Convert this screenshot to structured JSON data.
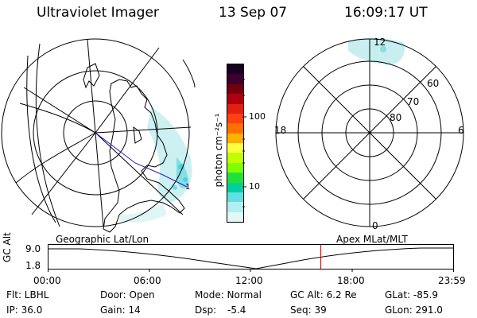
{
  "header": {
    "title": "Ultraviolet Imager",
    "date": "13 Sep 07",
    "time": "16:09:17 UT"
  },
  "colorbar": {
    "unit_label": "photon cm⁻²s⁻¹",
    "tick_100": "100",
    "tick_10": "10",
    "colors_top_to_bottom": [
      "#1a0020",
      "#3a0030",
      "#700010",
      "#b00010",
      "#e02010",
      "#ff4010",
      "#ff7000",
      "#ffb000",
      "#ffff40",
      "#c0ff00",
      "#80ff00",
      "#20e040",
      "#00d0a0",
      "#60e0e0",
      "#b0f0f0",
      "#e0f8f8"
    ]
  },
  "left_panel": {
    "label": "Geographic Lat/Lon"
  },
  "right_panel": {
    "label": "Apex MLat/MLT",
    "mlt_top": "12",
    "mlt_left": "18",
    "mlt_right": "6",
    "mlt_bottom": "0",
    "lat_60": "60",
    "lat_70": "70",
    "lat_80": "80"
  },
  "timeline": {
    "axis_label": "GC Alt",
    "y_top": "9.0",
    "y_bottom": "1.8",
    "x_ticks": [
      "00:00",
      "06:00",
      "12:00",
      "18:00",
      "23:59"
    ],
    "current_time_fraction": 0.673
  },
  "info": {
    "filter": "Flt: LBHL",
    "ip": "IP: 36.0",
    "door": "Door: Open",
    "gain": "Gain: 14",
    "mode": "Mode: Normal",
    "dsp_label": "Dsp:",
    "dsp_value": "-5.4",
    "gc_alt": "GC Alt: 6.2 Re",
    "seq": "Seq: 39",
    "glat": "GLat: -85.9",
    "glon": "GLon: 291.0"
  }
}
